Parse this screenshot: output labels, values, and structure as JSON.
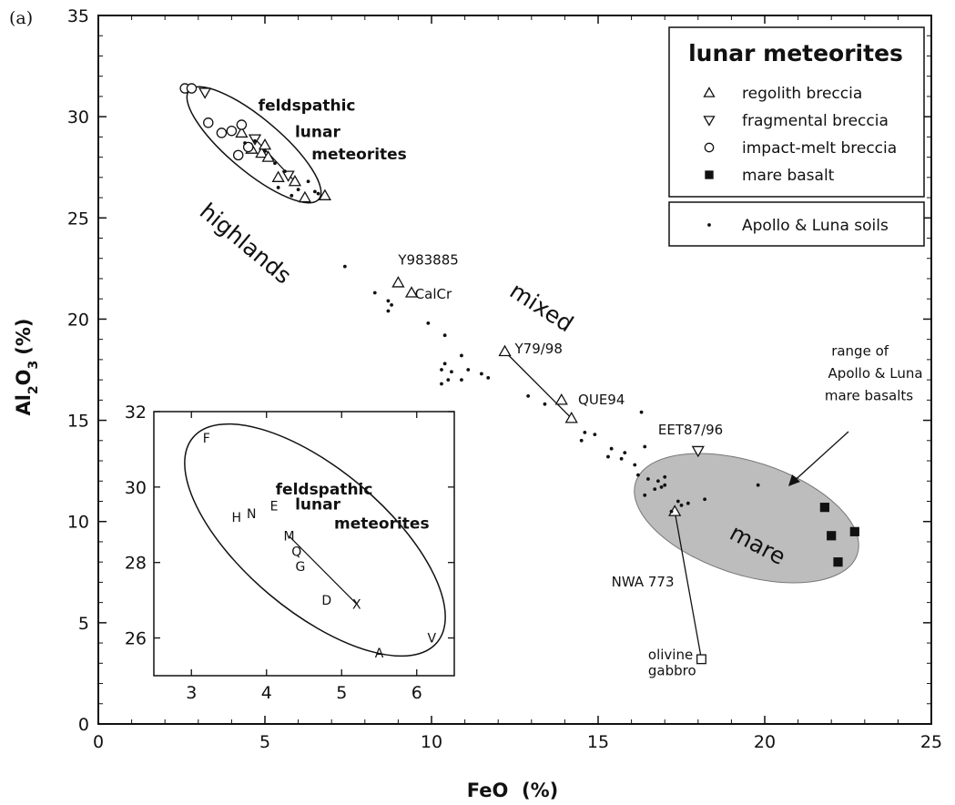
{
  "panel_label": "(a)",
  "chart_data": {
    "type": "scatter",
    "xlabel": "FeO  (%)",
    "ylabel": "Al2O3  (%)",
    "xlim": [
      0,
      25
    ],
    "ylim": [
      0,
      35
    ],
    "x_ticks": [
      0,
      5,
      10,
      15,
      20,
      25
    ],
    "y_ticks": [
      0,
      5,
      10,
      15,
      20,
      25,
      30,
      35
    ],
    "grid": false,
    "legend": {
      "title": "lunar meteorites",
      "placement": "top-right",
      "entries": [
        {
          "label": "regolith breccia",
          "marker": "triangle-up"
        },
        {
          "label": "fragmental breccia",
          "marker": "triangle-down"
        },
        {
          "label": "impact-melt breccia",
          "marker": "circle"
        },
        {
          "label": "mare basalt",
          "marker": "square-filled"
        }
      ],
      "secondary": [
        {
          "label": "Apollo & Luna soils",
          "marker": "dot"
        }
      ]
    },
    "series": [
      {
        "name": "regolith breccia",
        "marker": "triangle-up",
        "points": [
          [
            4.3,
            29.2
          ],
          [
            4.6,
            28.4
          ],
          [
            4.9,
            28.2
          ],
          [
            5.1,
            28.0
          ],
          [
            5.0,
            28.6
          ],
          [
            5.4,
            27.0
          ],
          [
            5.9,
            26.8
          ],
          [
            6.2,
            26.0
          ],
          [
            6.8,
            26.1
          ],
          [
            9.0,
            21.8
          ],
          [
            9.4,
            21.3
          ],
          [
            12.2,
            18.4
          ],
          [
            13.9,
            16.0
          ],
          [
            14.2,
            15.1
          ],
          [
            17.3,
            10.5
          ]
        ]
      },
      {
        "name": "fragmental breccia",
        "marker": "triangle-down",
        "points": [
          [
            3.2,
            31.2
          ],
          [
            4.7,
            28.9
          ],
          [
            5.7,
            27.1
          ],
          [
            18.0,
            13.5
          ]
        ]
      },
      {
        "name": "impact-melt breccia",
        "marker": "circle",
        "points": [
          [
            2.6,
            31.4
          ],
          [
            2.8,
            31.4
          ],
          [
            3.3,
            29.7
          ],
          [
            3.7,
            29.2
          ],
          [
            4.0,
            29.3
          ],
          [
            4.3,
            29.6
          ],
          [
            4.2,
            28.1
          ],
          [
            4.5,
            28.5
          ]
        ]
      },
      {
        "name": "mare basalt",
        "marker": "square-filled",
        "points": [
          [
            21.8,
            10.7
          ],
          [
            22.0,
            9.3
          ],
          [
            22.7,
            9.5
          ],
          [
            22.2,
            8.0
          ]
        ]
      },
      {
        "name": "olivine gabbro",
        "marker": "square-open",
        "points": [
          [
            18.1,
            3.2
          ]
        ]
      },
      {
        "name": "Apollo & Luna soils",
        "marker": "dot",
        "points": [
          [
            4.4,
            28.7
          ],
          [
            4.7,
            28.8
          ],
          [
            5.0,
            28.3
          ],
          [
            5.3,
            27.7
          ],
          [
            5.6,
            27.3
          ],
          [
            5.4,
            26.5
          ],
          [
            6.0,
            26.4
          ],
          [
            5.8,
            26.1
          ],
          [
            6.3,
            26.8
          ],
          [
            6.5,
            26.3
          ],
          [
            6.6,
            26.2
          ],
          [
            7.4,
            22.6
          ],
          [
            8.3,
            21.3
          ],
          [
            8.7,
            20.9
          ],
          [
            8.8,
            20.7
          ],
          [
            8.7,
            20.4
          ],
          [
            9.9,
            19.8
          ],
          [
            10.4,
            19.2
          ],
          [
            10.4,
            17.8
          ],
          [
            10.9,
            18.2
          ],
          [
            10.3,
            17.5
          ],
          [
            10.6,
            17.4
          ],
          [
            10.5,
            17.0
          ],
          [
            10.9,
            17.0
          ],
          [
            11.1,
            17.5
          ],
          [
            11.5,
            17.3
          ],
          [
            11.7,
            17.1
          ],
          [
            10.3,
            16.8
          ],
          [
            12.9,
            16.2
          ],
          [
            13.4,
            15.8
          ],
          [
            14.6,
            14.4
          ],
          [
            14.5,
            14.0
          ],
          [
            14.9,
            14.3
          ],
          [
            15.4,
            13.6
          ],
          [
            15.8,
            13.4
          ],
          [
            15.3,
            13.2
          ],
          [
            15.7,
            13.1
          ],
          [
            16.3,
            15.4
          ],
          [
            16.4,
            13.7
          ],
          [
            16.1,
            12.8
          ],
          [
            16.2,
            12.3
          ],
          [
            16.5,
            12.1
          ],
          [
            16.8,
            12.0
          ],
          [
            17.0,
            12.2
          ],
          [
            16.4,
            11.3
          ],
          [
            16.7,
            11.6
          ],
          [
            16.9,
            11.7
          ],
          [
            17.0,
            11.8
          ],
          [
            17.4,
            11.0
          ],
          [
            17.2,
            10.5
          ],
          [
            17.5,
            10.8
          ],
          [
            17.7,
            10.9
          ],
          [
            18.2,
            11.1
          ],
          [
            19.8,
            11.8
          ]
        ]
      }
    ],
    "annotations": [
      {
        "text": "highlands",
        "style": "big",
        "x": 3.0,
        "y": 25.2,
        "rotate": 40
      },
      {
        "text": "feldspathic",
        "style": "group",
        "x": 4.8,
        "y": 30.3
      },
      {
        "text": "lunar",
        "style": "group",
        "x": 5.9,
        "y": 29.0
      },
      {
        "text": "meteorites",
        "style": "group",
        "x": 6.4,
        "y": 27.9
      },
      {
        "text": "mixed",
        "style": "big",
        "x": 12.3,
        "y": 21.2,
        "rotate": 33
      },
      {
        "text": "mare",
        "style": "big",
        "x": 18.9,
        "y": 9.2,
        "rotate": 28
      },
      {
        "text": "Y983885",
        "style": "small",
        "x": 9.0,
        "y": 22.7
      },
      {
        "text": "CalCr",
        "style": "small",
        "x": 9.5,
        "y": 21.0
      },
      {
        "text": "Y79/98",
        "style": "small",
        "x": 12.5,
        "y": 18.3
      },
      {
        "text": "QUE94",
        "style": "small",
        "x": 14.4,
        "y": 15.8
      },
      {
        "text": "EET87/96",
        "style": "small",
        "x": 16.8,
        "y": 14.3
      },
      {
        "text": "NWA 773",
        "style": "small",
        "x": 15.4,
        "y": 6.8
      },
      {
        "text": "olivine",
        "style": "small",
        "x": 16.5,
        "y": 3.2
      },
      {
        "text": "gabbro",
        "style": "small",
        "x": 16.5,
        "y": 2.4
      },
      {
        "text": "range of",
        "style": "small",
        "x": 22.0,
        "y": 18.2
      },
      {
        "text": "Apollo & Luna",
        "style": "small",
        "x": 21.9,
        "y": 17.1
      },
      {
        "text": "mare basalts",
        "style": "small",
        "x": 21.8,
        "y": 16.0
      }
    ],
    "inset": {
      "type": "scatter",
      "xlim": [
        2.5,
        6.5
      ],
      "ylim": [
        25,
        32
      ],
      "x_ticks": [
        3,
        4,
        5,
        6
      ],
      "y_ticks": [
        26,
        28,
        30,
        32
      ],
      "labels": [
        "feldspathic",
        "lunar",
        "meteorites"
      ],
      "points": [
        {
          "label": "F",
          "x": 3.2,
          "y": 31.3
        },
        {
          "label": "E",
          "x": 4.1,
          "y": 29.5
        },
        {
          "label": "N",
          "x": 3.8,
          "y": 29.3
        },
        {
          "label": "H",
          "x": 3.6,
          "y": 29.2
        },
        {
          "label": "M",
          "x": 4.3,
          "y": 28.7
        },
        {
          "label": "Q",
          "x": 4.4,
          "y": 28.3
        },
        {
          "label": "G",
          "x": 4.45,
          "y": 27.9
        },
        {
          "label": "D",
          "x": 4.8,
          "y": 27.0
        },
        {
          "label": "X",
          "x": 5.2,
          "y": 26.9
        },
        {
          "label": "A",
          "x": 5.5,
          "y": 25.6
        },
        {
          "label": "V",
          "x": 6.2,
          "y": 26.0
        }
      ]
    }
  }
}
